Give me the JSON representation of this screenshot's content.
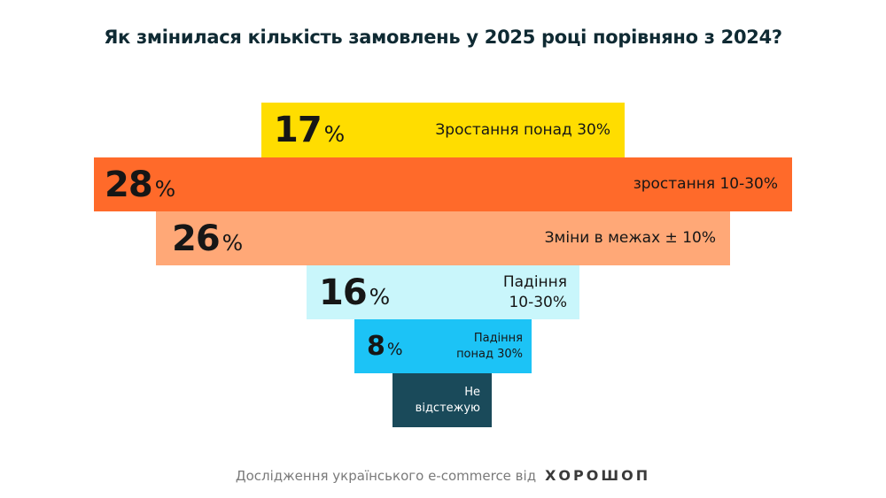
{
  "chart_data": {
    "type": "bar",
    "orientation": "horizontal-funnel",
    "title": "Як змінилася кількість замовлень у 2025 році порівняно з 2024?",
    "categories": [
      "Зростання понад 30%",
      "зростання 10-30%",
      "Зміни в межах ± 10%",
      "Падіння 10-30%",
      "Падіння понад 30%",
      "Не відстежую"
    ],
    "values": [
      17,
      28,
      26,
      16,
      8,
      null
    ],
    "value_labels": [
      "17",
      "28",
      "26",
      "16",
      "8",
      ""
    ],
    "unit": "%",
    "colors": [
      "#FFDD00",
      "#FF6A2A",
      "#FFA877",
      "#C9F6FB",
      "#1CC3F6",
      "#1A4A5A"
    ],
    "label_colors": [
      "#161616",
      "#161616",
      "#161616",
      "#161616",
      "#161616",
      "#FFFFFF"
    ],
    "grid": false
  },
  "footer": {
    "text": "Дослідження українського e-commerce від",
    "brand": "ХОРОШОП"
  }
}
